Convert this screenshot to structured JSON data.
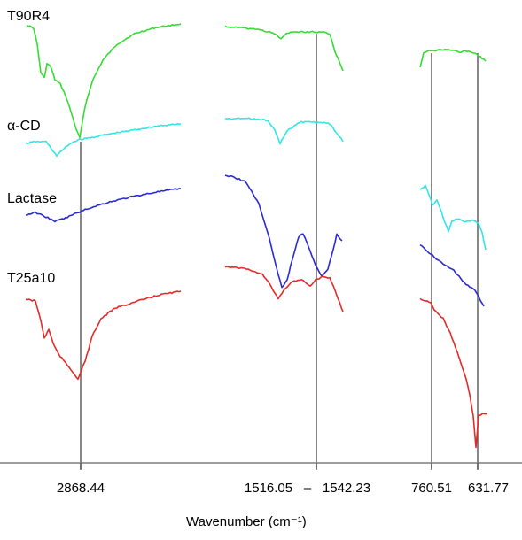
{
  "chart_data": {
    "type": "line",
    "xlabel": "Wavenumber (cm⁻¹)",
    "tick_labels": [
      "2868.44",
      "1516.05",
      "1542.23",
      "760.51",
      "631.77"
    ],
    "tick_separator": "–",
    "panels": [
      {
        "name": "2868.44 region",
        "markers": [
          "2868.44"
        ]
      },
      {
        "name": "1516.05–1542.23 region",
        "markers": [
          "1516.05",
          "1542.23"
        ]
      },
      {
        "name": "760.51–631.77 region",
        "markers": [
          "760.51",
          "631.77"
        ]
      }
    ],
    "series": [
      {
        "name": "T90R4",
        "color": "#33dd33"
      },
      {
        "name": "α-CD",
        "color": "#33e6e6"
      },
      {
        "name": "Lactase",
        "color": "#2a2ad6"
      },
      {
        "name": "T25a10",
        "color": "#e62a2a"
      }
    ],
    "grid": false,
    "legend": "series names at left of each trace"
  }
}
